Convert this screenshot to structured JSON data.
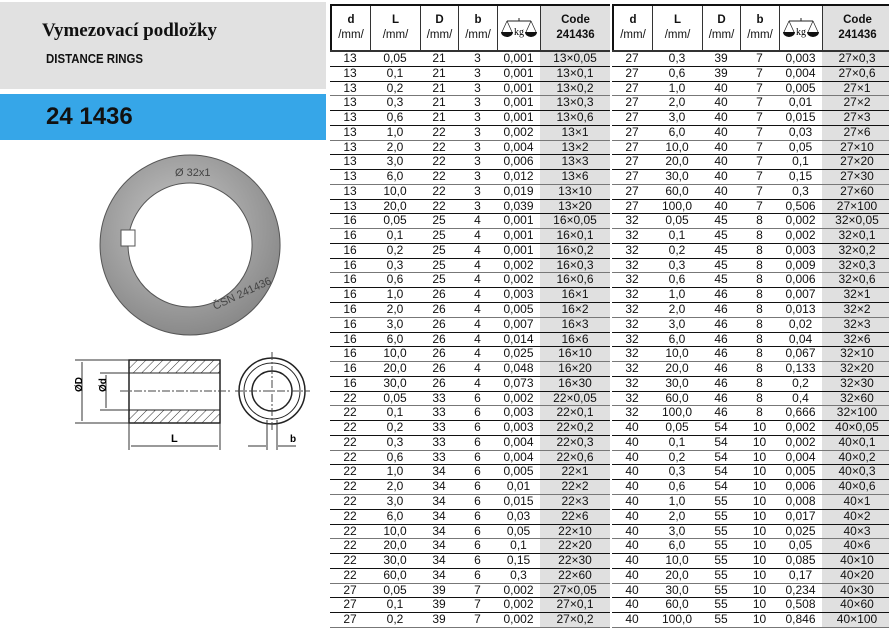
{
  "header": {
    "title_cz": "Vymezovací podložky",
    "title_en": "DISTANCE RINGS",
    "code": "24 1436"
  },
  "photo_marking": [
    "Ø 32x1",
    "ČSN 241436"
  ],
  "drawing_labels": {
    "outer_diameter": "ØD",
    "inner_diameter": "Ød",
    "length": "L",
    "key_width": "b"
  },
  "table_header": {
    "d": "d",
    "L": "L",
    "D": "D",
    "b": "b",
    "unit": "/mm/",
    "weight_unit": "kg",
    "code": "Code",
    "code_no": "241436",
    "weight_icon": "scale-icon"
  },
  "colors": {
    "band": "#36a6e8",
    "title_bg": "#e1e1e1",
    "code_col": "#e0e0e0"
  },
  "tables": [
    [
      [
        "13",
        "0,05",
        "21",
        "3",
        "0,001",
        "13×0,05"
      ],
      [
        "13",
        "0,1",
        "21",
        "3",
        "0,001",
        "13×0,1"
      ],
      [
        "13",
        "0,2",
        "21",
        "3",
        "0,001",
        "13×0,2"
      ],
      [
        "13",
        "0,3",
        "21",
        "3",
        "0,001",
        "13×0,3"
      ],
      [
        "13",
        "0,6",
        "21",
        "3",
        "0,001",
        "13×0,6"
      ],
      [
        "13",
        "1,0",
        "22",
        "3",
        "0,002",
        "13×1"
      ],
      [
        "13",
        "2,0",
        "22",
        "3",
        "0,004",
        "13×2"
      ],
      [
        "13",
        "3,0",
        "22",
        "3",
        "0,006",
        "13×3"
      ],
      [
        "13",
        "6,0",
        "22",
        "3",
        "0,012",
        "13×6"
      ],
      [
        "13",
        "10,0",
        "22",
        "3",
        "0,019",
        "13×10"
      ],
      [
        "13",
        "20,0",
        "22",
        "3",
        "0,039",
        "13×20"
      ],
      [
        "16",
        "0,05",
        "25",
        "4",
        "0,001",
        "16×0,05"
      ],
      [
        "16",
        "0,1",
        "25",
        "4",
        "0,001",
        "16×0,1"
      ],
      [
        "16",
        "0,2",
        "25",
        "4",
        "0,001",
        "16×0,2"
      ],
      [
        "16",
        "0,3",
        "25",
        "4",
        "0,002",
        "16×0,3"
      ],
      [
        "16",
        "0,6",
        "25",
        "4",
        "0,002",
        "16×0,6"
      ],
      [
        "16",
        "1,0",
        "26",
        "4",
        "0,003",
        "16×1"
      ],
      [
        "16",
        "2,0",
        "26",
        "4",
        "0,005",
        "16×2"
      ],
      [
        "16",
        "3,0",
        "26",
        "4",
        "0,007",
        "16×3"
      ],
      [
        "16",
        "6,0",
        "26",
        "4",
        "0,014",
        "16×6"
      ],
      [
        "16",
        "10,0",
        "26",
        "4",
        "0,025",
        "16×10"
      ],
      [
        "16",
        "20,0",
        "26",
        "4",
        "0,048",
        "16×20"
      ],
      [
        "16",
        "30,0",
        "26",
        "4",
        "0,073",
        "16×30"
      ],
      [
        "22",
        "0,05",
        "33",
        "6",
        "0,002",
        "22×0,05"
      ],
      [
        "22",
        "0,1",
        "33",
        "6",
        "0,003",
        "22×0,1"
      ],
      [
        "22",
        "0,2",
        "33",
        "6",
        "0,003",
        "22×0,2"
      ],
      [
        "22",
        "0,3",
        "33",
        "6",
        "0,004",
        "22×0,3"
      ],
      [
        "22",
        "0,6",
        "33",
        "6",
        "0,004",
        "22×0,6"
      ],
      [
        "22",
        "1,0",
        "34",
        "6",
        "0,005",
        "22×1"
      ],
      [
        "22",
        "2,0",
        "34",
        "6",
        "0,01",
        "22×2"
      ],
      [
        "22",
        "3,0",
        "34",
        "6",
        "0,015",
        "22×3"
      ],
      [
        "22",
        "6,0",
        "34",
        "6",
        "0,03",
        "22×6"
      ],
      [
        "22",
        "10,0",
        "34",
        "6",
        "0,05",
        "22×10"
      ],
      [
        "22",
        "20,0",
        "34",
        "6",
        "0,1",
        "22×20"
      ],
      [
        "22",
        "30,0",
        "34",
        "6",
        "0,15",
        "22×30"
      ],
      [
        "22",
        "60,0",
        "34",
        "6",
        "0,3",
        "22×60"
      ],
      [
        "27",
        "0,05",
        "39",
        "7",
        "0,002",
        "27×0,05"
      ],
      [
        "27",
        "0,1",
        "39",
        "7",
        "0,002",
        "27×0,1"
      ],
      [
        "27",
        "0,2",
        "39",
        "7",
        "0,002",
        "27×0,2"
      ]
    ],
    [
      [
        "27",
        "0,3",
        "39",
        "7",
        "0,003",
        "27×0,3"
      ],
      [
        "27",
        "0,6",
        "39",
        "7",
        "0,004",
        "27×0,6"
      ],
      [
        "27",
        "1,0",
        "40",
        "7",
        "0,005",
        "27×1"
      ],
      [
        "27",
        "2,0",
        "40",
        "7",
        "0,01",
        "27×2"
      ],
      [
        "27",
        "3,0",
        "40",
        "7",
        "0,015",
        "27×3"
      ],
      [
        "27",
        "6,0",
        "40",
        "7",
        "0,03",
        "27×6"
      ],
      [
        "27",
        "10,0",
        "40",
        "7",
        "0,05",
        "27×10"
      ],
      [
        "27",
        "20,0",
        "40",
        "7",
        "0,1",
        "27×20"
      ],
      [
        "27",
        "30,0",
        "40",
        "7",
        "0,15",
        "27×30"
      ],
      [
        "27",
        "60,0",
        "40",
        "7",
        "0,3",
        "27×60"
      ],
      [
        "27",
        "100,0",
        "40",
        "7",
        "0,506",
        "27×100"
      ],
      [
        "32",
        "0,05",
        "45",
        "8",
        "0,002",
        "32×0,05"
      ],
      [
        "32",
        "0,1",
        "45",
        "8",
        "0,002",
        "32×0,1"
      ],
      [
        "32",
        "0,2",
        "45",
        "8",
        "0,003",
        "32×0,2"
      ],
      [
        "32",
        "0,3",
        "45",
        "8",
        "0,009",
        "32×0,3"
      ],
      [
        "32",
        "0,6",
        "45",
        "8",
        "0,006",
        "32×0,6"
      ],
      [
        "32",
        "1,0",
        "46",
        "8",
        "0,007",
        "32×1"
      ],
      [
        "32",
        "2,0",
        "46",
        "8",
        "0,013",
        "32×2"
      ],
      [
        "32",
        "3,0",
        "46",
        "8",
        "0,02",
        "32×3"
      ],
      [
        "32",
        "6,0",
        "46",
        "8",
        "0,04",
        "32×6"
      ],
      [
        "32",
        "10,0",
        "46",
        "8",
        "0,067",
        "32×10"
      ],
      [
        "32",
        "20,0",
        "46",
        "8",
        "0,133",
        "32×20"
      ],
      [
        "32",
        "30,0",
        "46",
        "8",
        "0,2",
        "32×30"
      ],
      [
        "32",
        "60,0",
        "46",
        "8",
        "0,4",
        "32×60"
      ],
      [
        "32",
        "100,0",
        "46",
        "8",
        "0,666",
        "32×100"
      ],
      [
        "40",
        "0,05",
        "54",
        "10",
        "0,002",
        "40×0,05"
      ],
      [
        "40",
        "0,1",
        "54",
        "10",
        "0,002",
        "40×0,1"
      ],
      [
        "40",
        "0,2",
        "54",
        "10",
        "0,004",
        "40×0,2"
      ],
      [
        "40",
        "0,3",
        "54",
        "10",
        "0,005",
        "40×0,3"
      ],
      [
        "40",
        "0,6",
        "54",
        "10",
        "0,006",
        "40×0,6"
      ],
      [
        "40",
        "1,0",
        "55",
        "10",
        "0,008",
        "40×1"
      ],
      [
        "40",
        "2,0",
        "55",
        "10",
        "0,017",
        "40×2"
      ],
      [
        "40",
        "3,0",
        "55",
        "10",
        "0,025",
        "40×3"
      ],
      [
        "40",
        "6,0",
        "55",
        "10",
        "0,05",
        "40×6"
      ],
      [
        "40",
        "10,0",
        "55",
        "10",
        "0,085",
        "40×10"
      ],
      [
        "40",
        "20,0",
        "55",
        "10",
        "0,17",
        "40×20"
      ],
      [
        "40",
        "30,0",
        "55",
        "10",
        "0,234",
        "40×30"
      ],
      [
        "40",
        "60,0",
        "55",
        "10",
        "0,508",
        "40×60"
      ],
      [
        "40",
        "100,0",
        "55",
        "10",
        "0,846",
        "40×100"
      ]
    ]
  ]
}
